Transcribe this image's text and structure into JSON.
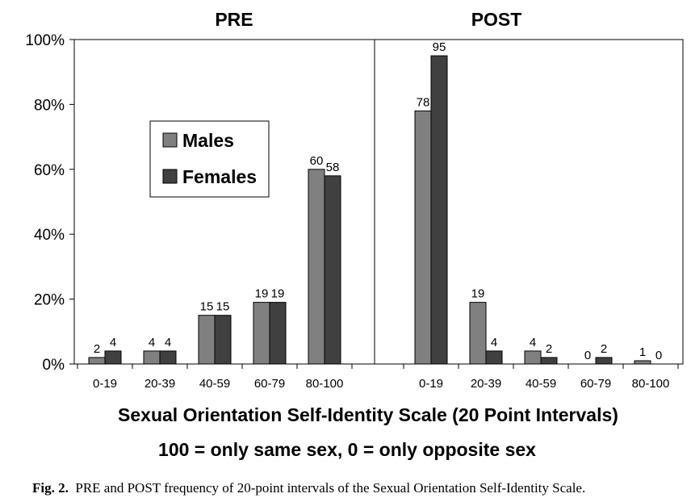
{
  "chart_data": {
    "type": "bar",
    "panels": [
      {
        "title": "PRE",
        "categories": [
          "0-19",
          "20-39",
          "40-59",
          "60-79",
          "80-100"
        ],
        "series": [
          {
            "name": "Males",
            "values": [
              2,
              4,
              15,
              19,
              60
            ]
          },
          {
            "name": "Females",
            "values": [
              4,
              4,
              15,
              19,
              58
            ]
          }
        ]
      },
      {
        "title": "POST",
        "categories": [
          "0-19",
          "20-39",
          "40-59",
          "60-79",
          "80-100"
        ],
        "series": [
          {
            "name": "Males",
            "values": [
              78,
              19,
              4,
              0,
              1
            ]
          },
          {
            "name": "Females",
            "values": [
              95,
              4,
              2,
              2,
              0
            ]
          }
        ]
      }
    ],
    "y_ticks": [
      "0%",
      "20%",
      "40%",
      "60%",
      "80%",
      "100%"
    ],
    "ylim": [
      0,
      100
    ],
    "xlabel": "Sexual Orientation Self-Identity Scale (20 Point Intervals)",
    "xlabel2": "100 = only same sex, 0 = only opposite sex",
    "legend_position": "left, middle of PRE panel",
    "grid": false,
    "colors": {
      "Males": "#808080",
      "Females": "#404040"
    }
  },
  "caption": {
    "label": "Fig. 2.",
    "text": "PRE and POST frequency of 20-point intervals of the Sexual Orientation Self-Identity Scale."
  }
}
